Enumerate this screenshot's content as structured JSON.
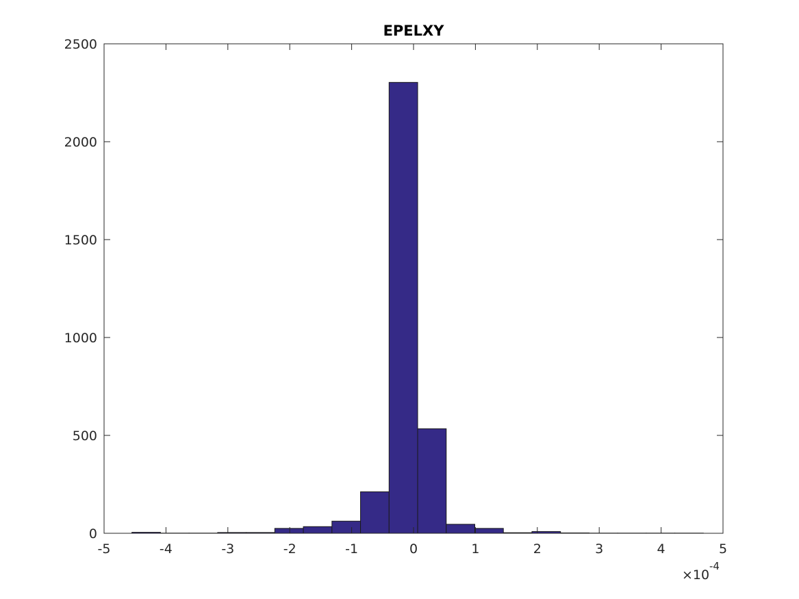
{
  "chart_data": {
    "type": "bar",
    "title": "EPELXY",
    "xlabel": "",
    "ylabel": "",
    "x_exponent_label": "×10",
    "x_exponent_power": "-4",
    "xlim": [
      -5,
      5
    ],
    "ylim": [
      0,
      2500
    ],
    "xticks": [
      -5,
      -4,
      -3,
      -2,
      -1,
      0,
      1,
      2,
      3,
      4,
      5
    ],
    "yticks": [
      0,
      500,
      1000,
      1500,
      2000,
      2500
    ],
    "grid": false,
    "bar_color": "#352a87",
    "bin_edges": [
      -4.55,
      -4.0883,
      -3.6267,
      -3.165,
      -2.7033,
      -2.2417,
      -1.78,
      -1.3183,
      -0.8567,
      -0.395,
      0.0667,
      0.5283,
      0.99,
      1.4517,
      1.9133,
      2.375,
      2.8367,
      3.2983,
      3.76,
      4.2217,
      4.6833
    ],
    "counts": [
      5,
      1,
      1,
      4,
      4,
      25,
      34,
      62,
      212,
      2303,
      534,
      46,
      25,
      3,
      9,
      2,
      1,
      1,
      1,
      1
    ]
  }
}
